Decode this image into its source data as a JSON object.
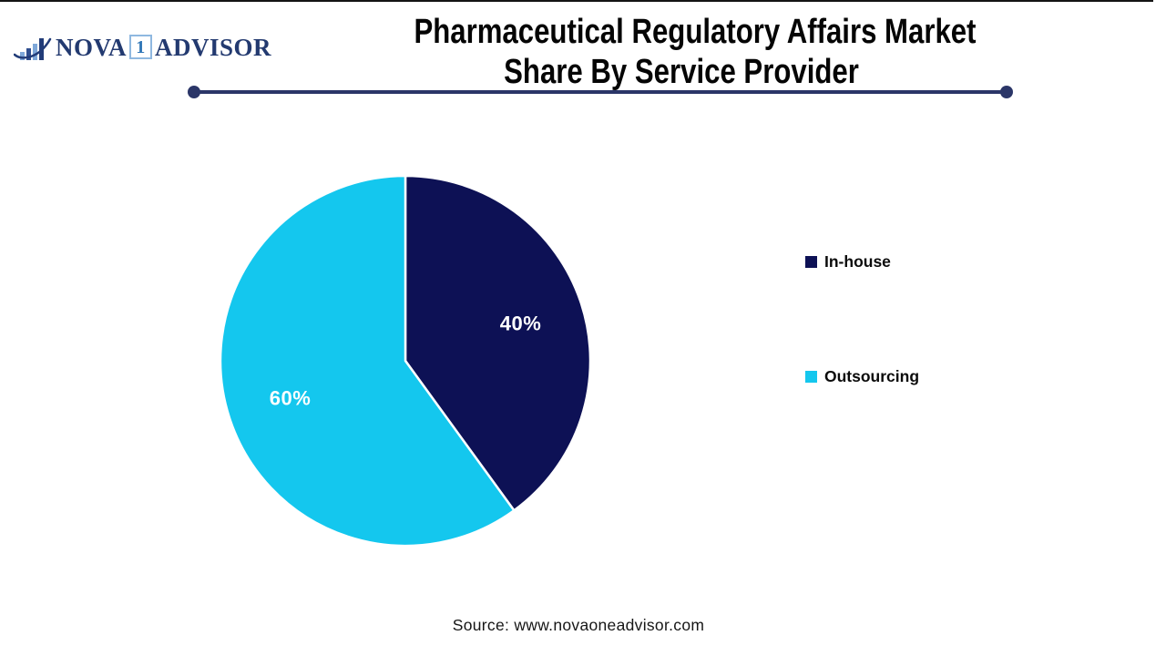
{
  "logo": {
    "text_nova": "NOVA",
    "text_one": "1",
    "text_advisor": "ADVISOR"
  },
  "title": {
    "line1": "Pharmaceutical Regulatory Affairs Market",
    "line2": "Share By Service Provider"
  },
  "chart_data": {
    "type": "pie",
    "title": "Pharmaceutical Regulatory Affairs Market Share By Service Provider",
    "categories": [
      "In-house",
      "Outsourcing"
    ],
    "values": [
      40,
      60
    ],
    "unit": "%",
    "data_labels": [
      "40%",
      "60%"
    ],
    "slice_colors": [
      "#0D1155",
      "#14C7EE"
    ],
    "label_color": "#FFFFFF",
    "start_angle_deg": 0,
    "direction": "clockwise",
    "legend_position": "right"
  },
  "source": {
    "text": "Source: www.novaoneadvisor.com"
  },
  "theme": {
    "accent_line": "#2B3668",
    "title_color": "#050505",
    "brand_navy": "#233A70",
    "brand_blue": "#2E75B6",
    "brand_light_blue": "#8FB8E0"
  }
}
